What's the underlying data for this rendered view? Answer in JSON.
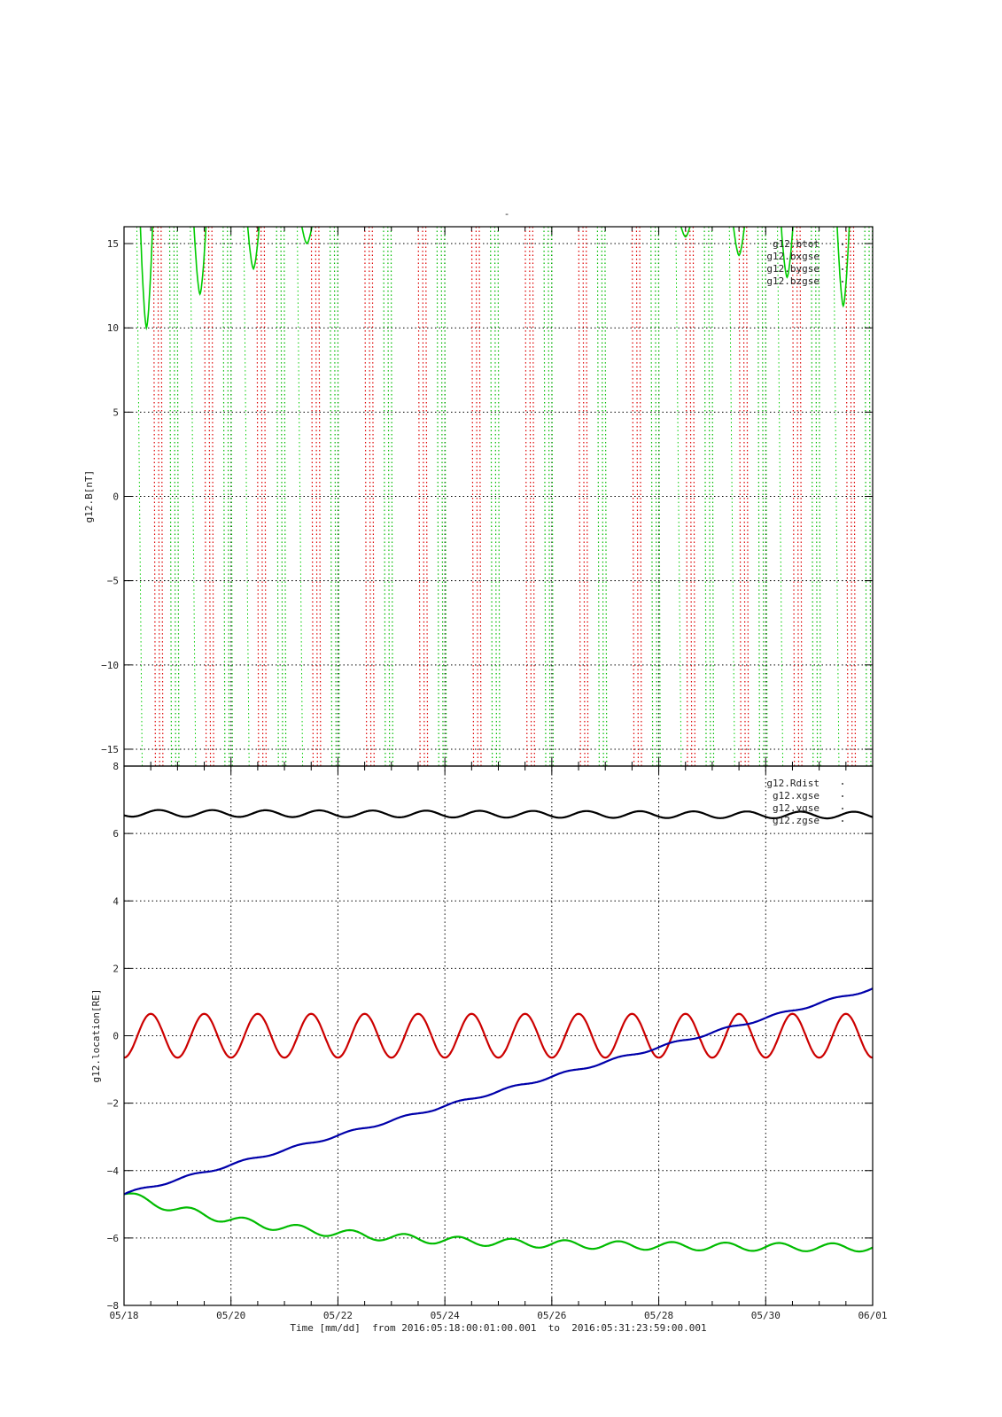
{
  "page_title": "-",
  "chart_data": [
    {
      "type": "line",
      "ylabel": "g12.B[nT]",
      "ylim": [
        -16,
        16
      ],
      "yticks": [
        -15,
        -10,
        -5,
        0,
        5,
        10,
        15
      ],
      "ytick_labels": [
        "−15",
        "−10",
        "−5",
        "0",
        "5",
        "10",
        "15"
      ],
      "xlim": [
        0,
        14
      ],
      "xticks": [
        0,
        2,
        4,
        6,
        8,
        10,
        12,
        14
      ],
      "grid": true,
      "legend_position": "top-right",
      "legend": [
        "g12.btot",
        "g12.bxgse",
        "g12.bygse",
        "g12.bzgse"
      ],
      "series_colors": [
        "#00cc00",
        "#dd0000",
        "#00bb00",
        "#0000cc"
      ],
      "note_values": "most field values exceed the plotted range [-16,16]; only wraps and minima are visible",
      "btot_minima": [
        {
          "x": 0.42,
          "y": 10.0
        },
        {
          "x": 1.42,
          "y": 12.0
        },
        {
          "x": 2.42,
          "y": 13.5
        },
        {
          "x": 3.42,
          "y": 15.0
        },
        {
          "x": 10.5,
          "y": 15.4
        },
        {
          "x": 11.5,
          "y": 14.3
        },
        {
          "x": 12.4,
          "y": 13.0
        },
        {
          "x": 13.45,
          "y": 11.3
        }
      ],
      "bx_crossings": [
        0.65,
        1.6,
        2.58,
        3.6,
        4.6,
        5.6,
        6.6,
        7.6,
        8.6,
        9.6,
        10.6,
        11.6,
        12.6,
        13.6
      ],
      "bz_crossings": [
        0.95,
        1.95,
        2.95,
        3.95,
        4.95,
        5.95,
        6.95,
        7.95,
        8.95,
        9.95,
        10.95,
        11.95,
        12.95,
        13.95
      ]
    },
    {
      "type": "line",
      "ylabel": "g12.location[RE]",
      "xlabel": "Time [mm/dd]  from 2016:05:18:00:01:00.001  to  2016:05:31:23:59:00.001",
      "ylim": [
        -8,
        8
      ],
      "yticks": [
        -8,
        -6,
        -4,
        -2,
        0,
        2,
        4,
        6,
        8
      ],
      "ytick_labels": [
        "−8",
        "−6",
        "−4",
        "−2",
        "0",
        "2",
        "4",
        "6",
        "8"
      ],
      "xlim": [
        0,
        14
      ],
      "xticks": [
        0,
        2,
        4,
        6,
        8,
        10,
        12,
        14
      ],
      "xtick_labels": [
        "05/18",
        "05/20",
        "05/22",
        "05/24",
        "05/26",
        "05/28",
        "05/30",
        "06/01"
      ],
      "grid": true,
      "legend_position": "top-right",
      "legend": [
        "g12.Rdist",
        "g12.xgse",
        "g12.ygse",
        "g12.zgse"
      ],
      "series": [
        {
          "name": "g12.Rdist",
          "color": "#000000",
          "kind": "sinusoid",
          "mean": 6.6,
          "amplitude": 0.1,
          "period_days": 1.0,
          "phase_days": 0.4,
          "trend_per_day": -0.004
        },
        {
          "name": "g12.xgse",
          "color": "#cc0000",
          "kind": "sinusoid",
          "mean": 0.0,
          "amplitude": 0.65,
          "period_days": 1.0,
          "phase_days": 0.25,
          "trend_per_day": 0.0
        },
        {
          "name": "g12.ygse",
          "color": "#00bb00",
          "kind": "trend-wave",
          "start": -4.7,
          "end": -6.3,
          "amplitude": 0.12,
          "period_days": 1.0,
          "decay": 0.32
        },
        {
          "name": "g12.zgse",
          "color": "#0000aa",
          "kind": "trend-wave",
          "start": -4.7,
          "end": 1.4,
          "amplitude": 0.04,
          "period_days": 1.0,
          "decay": 0.0
        }
      ]
    }
  ]
}
